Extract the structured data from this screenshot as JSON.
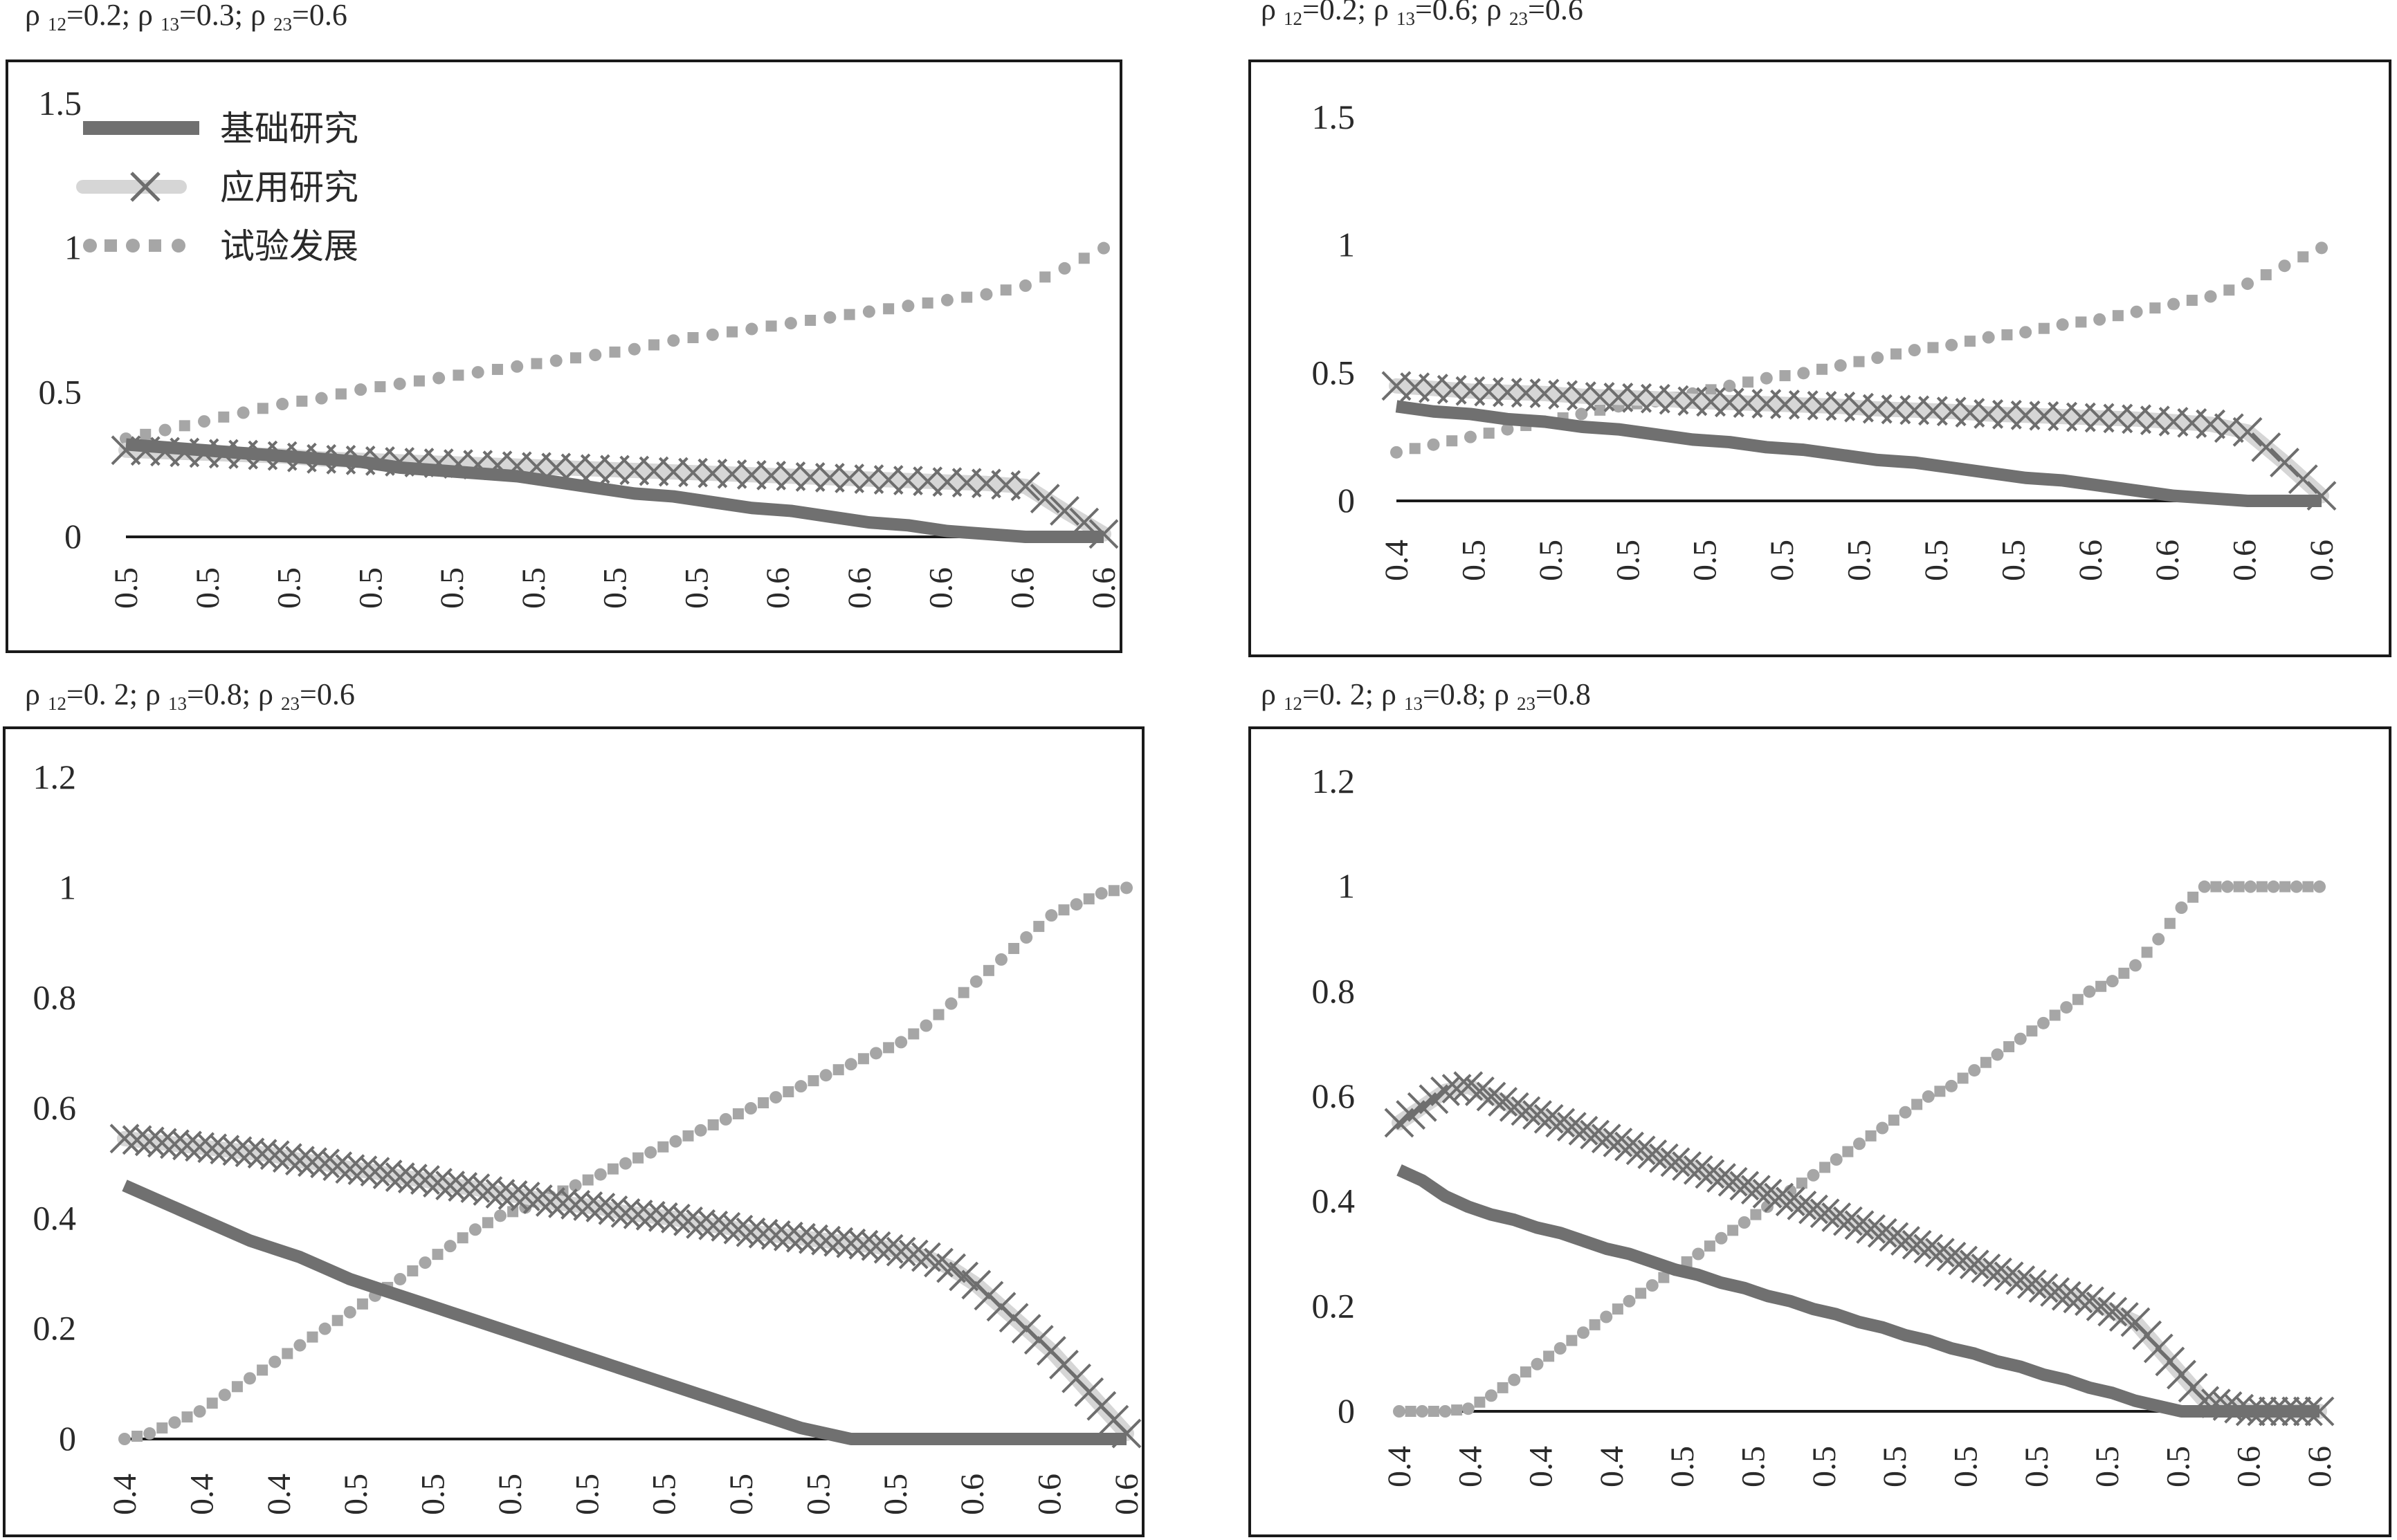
{
  "colors": {
    "basic": "#707070",
    "applied_x": "#6e6e6e",
    "applied_band": "#d6d6d6",
    "experimental": "#a6a6a6",
    "axis": "#1a1a1a",
    "frame": "#1a1a1a"
  },
  "legend": [
    {
      "label": "基础研究",
      "icon": "thick-line-icon"
    },
    {
      "label": "应用研究",
      "icon": "cross-marker-icon"
    },
    {
      "label": "试验发展",
      "icon": "dotted-line-icon"
    }
  ],
  "panels": [
    {
      "title": {
        "r12": "=0.2; ",
        "r13": "=0.3; ",
        "r23": "=0.6"
      },
      "y_ticks": [
        "1.5",
        "1",
        "0.5",
        "0"
      ],
      "x_ticks": [
        "0.5",
        "0.5",
        "0.5",
        "0.5",
        "0.5",
        "0.5",
        "0.5",
        "0.5",
        "0.6",
        "0.6",
        "0.6",
        "0.6",
        "0.6"
      ]
    },
    {
      "title": {
        "r12": "=0.2; ",
        "r13": "=0.6; ",
        "r23": "=0.6"
      },
      "y_ticks": [
        "1.5",
        "1",
        "0.5",
        "0"
      ],
      "x_ticks": [
        "0.4",
        "0.5",
        "0.5",
        "0.5",
        "0.5",
        "0.5",
        "0.5",
        "0.5",
        "0.5",
        "0.6",
        "0.6",
        "0.6",
        "0.6"
      ]
    },
    {
      "title": {
        "r12": "=0. 2; ",
        "r13": "=0.8; ",
        "r23": "=0.6"
      },
      "y_ticks": [
        "1.2",
        "1",
        "0.8",
        "0.6",
        "0.4",
        "0.2",
        "0"
      ],
      "x_ticks": [
        "0.4",
        "0.4",
        "0.4",
        "0.5",
        "0.5",
        "0.5",
        "0.5",
        "0.5",
        "0.5",
        "0.5",
        "0.5",
        "0.6",
        "0.6",
        "0.6"
      ]
    },
    {
      "title": {
        "r12": "=0. 2; ",
        "r13": "=0.8; ",
        "r23": "=0.8"
      },
      "y_ticks": [
        "1.2",
        "1",
        "0.8",
        "0.6",
        "0.4",
        "0.2",
        "0"
      ],
      "x_ticks": [
        "0.4",
        "0.4",
        "0.4",
        "0.4",
        "0.5",
        "0.5",
        "0.5",
        "0.5",
        "0.5",
        "0.5",
        "0.5",
        "0.5",
        "0.6",
        "0.6"
      ]
    }
  ],
  "chart_data": [
    {
      "type": "line",
      "title": "ρ12=0.2; ρ13=0.3; ρ23=0.6",
      "ylim": [
        0,
        1.5
      ],
      "x": [
        0,
        1,
        2,
        3,
        4,
        5,
        6,
        7,
        8,
        9,
        10,
        11,
        12,
        13,
        14,
        15,
        16,
        17,
        18,
        19,
        20,
        21,
        22,
        23,
        24,
        25
      ],
      "series": [
        {
          "name": "基础研究",
          "style": "thick-line",
          "values": [
            0.32,
            0.31,
            0.3,
            0.29,
            0.28,
            0.27,
            0.26,
            0.24,
            0.23,
            0.22,
            0.21,
            0.19,
            0.17,
            0.15,
            0.14,
            0.12,
            0.1,
            0.09,
            0.07,
            0.05,
            0.04,
            0.02,
            0.01,
            0,
            0,
            0
          ]
        },
        {
          "name": "应用研究",
          "style": "cross-marker",
          "values": [
            0.3,
            0.295,
            0.29,
            0.285,
            0.28,
            0.27,
            0.265,
            0.26,
            0.255,
            0.25,
            0.245,
            0.24,
            0.235,
            0.23,
            0.225,
            0.22,
            0.215,
            0.21,
            0.205,
            0.2,
            0.195,
            0.19,
            0.185,
            0.175,
            0.09,
            0.01
          ]
        },
        {
          "name": "试验发展",
          "style": "dotted-line",
          "values": [
            0.34,
            0.37,
            0.4,
            0.43,
            0.46,
            0.48,
            0.51,
            0.53,
            0.55,
            0.57,
            0.59,
            0.61,
            0.63,
            0.65,
            0.68,
            0.7,
            0.72,
            0.74,
            0.76,
            0.78,
            0.8,
            0.82,
            0.84,
            0.87,
            0.93,
            1.0
          ]
        }
      ]
    },
    {
      "type": "line",
      "title": "ρ12=0.2; ρ13=0.6; ρ23=0.6",
      "ylim": [
        0,
        1.5
      ],
      "x": [
        0,
        1,
        2,
        3,
        4,
        5,
        6,
        7,
        8,
        9,
        10,
        11,
        12,
        13,
        14,
        15,
        16,
        17,
        18,
        19,
        20,
        21,
        22,
        23,
        24,
        25
      ],
      "series": [
        {
          "name": "基础研究",
          "style": "thick-line",
          "values": [
            0.37,
            0.35,
            0.34,
            0.32,
            0.31,
            0.29,
            0.28,
            0.26,
            0.24,
            0.23,
            0.21,
            0.2,
            0.18,
            0.16,
            0.15,
            0.13,
            0.11,
            0.09,
            0.08,
            0.06,
            0.04,
            0.02,
            0.01,
            0,
            0,
            0
          ]
        },
        {
          "name": "应用研究",
          "style": "cross-marker",
          "values": [
            0.45,
            0.44,
            0.43,
            0.425,
            0.42,
            0.41,
            0.405,
            0.4,
            0.39,
            0.385,
            0.38,
            0.375,
            0.37,
            0.36,
            0.355,
            0.35,
            0.34,
            0.335,
            0.33,
            0.325,
            0.32,
            0.31,
            0.3,
            0.27,
            0.15,
            0.02
          ]
        },
        {
          "name": "试验发展",
          "style": "dotted-line",
          "values": [
            0.19,
            0.22,
            0.25,
            0.28,
            0.31,
            0.34,
            0.37,
            0.39,
            0.42,
            0.45,
            0.48,
            0.5,
            0.53,
            0.56,
            0.59,
            0.61,
            0.64,
            0.66,
            0.69,
            0.71,
            0.74,
            0.77,
            0.8,
            0.85,
            0.92,
            0.99
          ]
        }
      ]
    },
    {
      "type": "line",
      "title": "ρ12=0. 2; ρ13=0.8; ρ23=0.6",
      "ylim": [
        0,
        1.2
      ],
      "x": [
        0,
        1,
        2,
        3,
        4,
        5,
        6,
        7,
        8,
        9,
        10,
        11,
        12,
        13,
        14,
        15,
        16,
        17,
        18,
        19,
        20,
        21,
        22,
        23,
        24,
        25,
        26,
        27,
        28,
        29,
        30,
        31,
        32,
        33,
        34,
        35,
        36,
        37,
        38,
        39,
        40
      ],
      "series": [
        {
          "name": "基础研究",
          "style": "thick-line",
          "values": [
            0.46,
            0.44,
            0.42,
            0.4,
            0.38,
            0.36,
            0.345,
            0.33,
            0.31,
            0.29,
            0.275,
            0.26,
            0.245,
            0.23,
            0.215,
            0.2,
            0.185,
            0.17,
            0.155,
            0.14,
            0.125,
            0.11,
            0.095,
            0.08,
            0.065,
            0.05,
            0.035,
            0.02,
            0.01,
            0,
            0,
            0,
            0,
            0,
            0,
            0,
            0,
            0,
            0,
            0,
            0
          ]
        },
        {
          "name": "应用研究",
          "style": "cross-marker",
          "values": [
            0.545,
            0.54,
            0.535,
            0.53,
            0.525,
            0.52,
            0.515,
            0.505,
            0.5,
            0.49,
            0.485,
            0.475,
            0.47,
            0.46,
            0.455,
            0.445,
            0.44,
            0.43,
            0.425,
            0.42,
            0.41,
            0.405,
            0.4,
            0.39,
            0.385,
            0.375,
            0.37,
            0.365,
            0.36,
            0.355,
            0.35,
            0.34,
            0.33,
            0.31,
            0.28,
            0.24,
            0.2,
            0.16,
            0.11,
            0.06,
            0.01
          ]
        },
        {
          "name": "试验发展",
          "style": "dotted-line",
          "values": [
            0.0,
            0.01,
            0.03,
            0.05,
            0.08,
            0.11,
            0.14,
            0.17,
            0.2,
            0.23,
            0.26,
            0.29,
            0.32,
            0.35,
            0.38,
            0.405,
            0.42,
            0.44,
            0.46,
            0.48,
            0.5,
            0.52,
            0.54,
            0.56,
            0.58,
            0.6,
            0.62,
            0.64,
            0.66,
            0.68,
            0.7,
            0.72,
            0.75,
            0.79,
            0.83,
            0.87,
            0.91,
            0.95,
            0.97,
            0.99,
            1.0
          ]
        }
      ]
    },
    {
      "type": "line",
      "title": "ρ12=0. 2; ρ13=0.8; ρ23=0.8",
      "ylim": [
        0,
        1.2
      ],
      "x": [
        0,
        1,
        2,
        3,
        4,
        5,
        6,
        7,
        8,
        9,
        10,
        11,
        12,
        13,
        14,
        15,
        16,
        17,
        18,
        19,
        20,
        21,
        22,
        23,
        24,
        25,
        26,
        27,
        28,
        29,
        30,
        31,
        32,
        33,
        34,
        35,
        36,
        37,
        38,
        39,
        40
      ],
      "series": [
        {
          "name": "基础研究",
          "style": "thick-line",
          "values": [
            0.46,
            0.44,
            0.41,
            0.39,
            0.375,
            0.365,
            0.35,
            0.34,
            0.325,
            0.31,
            0.3,
            0.285,
            0.27,
            0.26,
            0.245,
            0.235,
            0.22,
            0.21,
            0.195,
            0.185,
            0.17,
            0.16,
            0.145,
            0.135,
            0.12,
            0.11,
            0.095,
            0.085,
            0.07,
            0.06,
            0.045,
            0.035,
            0.02,
            0.01,
            0,
            0,
            0,
            0,
            0,
            0,
            0
          ]
        },
        {
          "name": "应用研究",
          "style": "cross-marker",
          "values": [
            0.55,
            0.58,
            0.61,
            0.62,
            0.6,
            0.58,
            0.565,
            0.55,
            0.535,
            0.52,
            0.505,
            0.49,
            0.475,
            0.46,
            0.445,
            0.43,
            0.415,
            0.4,
            0.385,
            0.37,
            0.355,
            0.34,
            0.325,
            0.31,
            0.295,
            0.28,
            0.265,
            0.25,
            0.235,
            0.22,
            0.21,
            0.19,
            0.17,
            0.12,
            0.07,
            0.02,
            0.01,
            0,
            0,
            0,
            0
          ]
        },
        {
          "name": "试验发展",
          "style": "dotted-line",
          "values": [
            0,
            0,
            0,
            0.005,
            0.03,
            0.06,
            0.09,
            0.12,
            0.15,
            0.18,
            0.21,
            0.24,
            0.27,
            0.3,
            0.33,
            0.36,
            0.39,
            0.42,
            0.45,
            0.48,
            0.51,
            0.54,
            0.57,
            0.6,
            0.62,
            0.65,
            0.68,
            0.71,
            0.74,
            0.77,
            0.8,
            0.82,
            0.85,
            0.9,
            0.96,
            1.0,
            1.0,
            1.0,
            1.0,
            1.0,
            1.0
          ]
        }
      ]
    }
  ]
}
